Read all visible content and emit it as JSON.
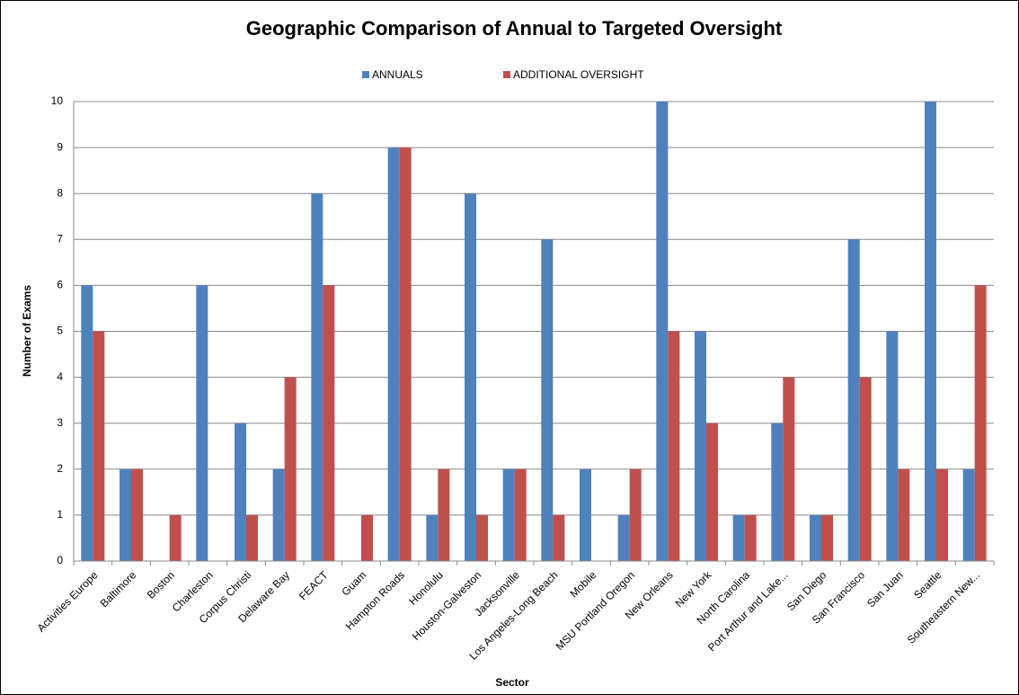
{
  "chart_data": {
    "type": "bar",
    "title": "Geographic Comparison of Annual to Targeted Oversight",
    "x_label": "Sector",
    "y_label": "Number of Exams",
    "categories": [
      "Activities Europe",
      "Baltimore",
      "Boston",
      "Charleston",
      "Corpus Christi",
      "Delaware Bay",
      "FEACT",
      "Guam",
      "Hampton Roads",
      "Honolulu",
      "Houston-Galveston",
      "Jacksonville",
      "Los Angeles-Long Beach",
      "Mobile",
      "MSU Portland Oregon",
      "New Orleans",
      "New York",
      "North Carolina",
      "Port Arthur and Lake...",
      "San Diego",
      "San Francisco",
      "San Juan",
      "Seattle",
      "Southeastern New..."
    ],
    "series": [
      {
        "name": "ANNUALS",
        "color": "#4f81bd",
        "values": [
          6,
          2,
          0,
          6,
          3,
          2,
          8,
          0,
          9,
          1,
          8,
          2,
          7,
          2,
          1,
          10,
          5,
          1,
          3,
          1,
          7,
          5,
          10,
          2
        ]
      },
      {
        "name": "ADDITIONAL OVERSIGHT",
        "color": "#c0504d",
        "values": [
          5,
          2,
          1,
          0,
          1,
          4,
          6,
          1,
          9,
          2,
          1,
          2,
          1,
          0,
          2,
          5,
          3,
          1,
          4,
          1,
          4,
          2,
          2,
          6
        ]
      }
    ],
    "ylim": [
      0,
      10
    ],
    "yticks": [
      0,
      1,
      2,
      3,
      4,
      5,
      6,
      7,
      8,
      9,
      10
    ],
    "grid": true,
    "legend": "top"
  }
}
